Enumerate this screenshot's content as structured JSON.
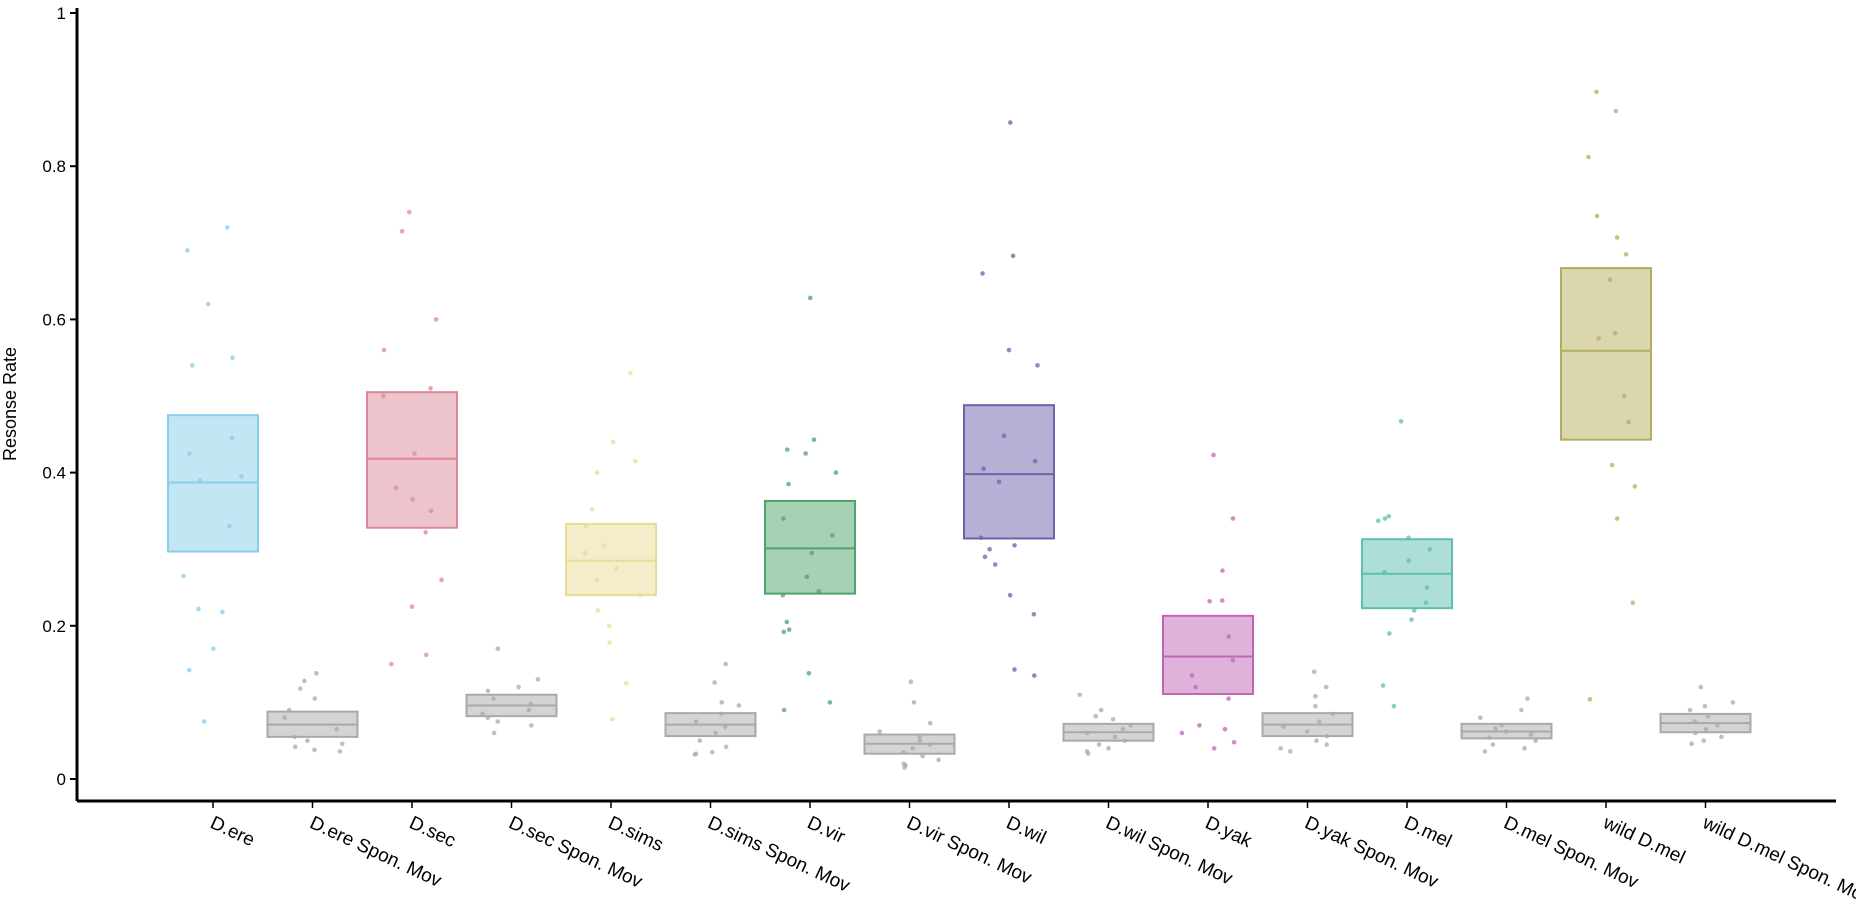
{
  "chart_data": {
    "type": "box",
    "ylabel": "Resonse Rate",
    "xlabel": "",
    "title": "",
    "ylim": [
      0,
      1
    ],
    "y_ticks": [
      0,
      0.2,
      0.4,
      0.6,
      0.8,
      1
    ],
    "y_tick_labels": [
      "0",
      "0.2",
      "0.4",
      "0.6",
      "0.8",
      "1"
    ],
    "grid": false,
    "categories": [
      "D.ere",
      "D.ere Spon. Mov",
      "D.sec",
      "D.sec Spon. Mov",
      "D.sims",
      "D.sims Spon. Mov",
      "D.vir",
      "D.vir Spon. Mov",
      "D.wil",
      "D.wil Spon. Mov",
      "D.yak",
      "D.yak Spon. Mov",
      "D.mel",
      "D.mel Spon. Mov",
      "wild D.mel",
      "wild D.mel Spon. Mov"
    ],
    "boxes": [
      {
        "category": "D.ere",
        "q1": 0.297,
        "median": 0.387,
        "q3": 0.475,
        "color": "#87ceeb",
        "points": [
          0.72,
          0.69,
          0.62,
          0.55,
          0.54,
          0.445,
          0.425,
          0.395,
          0.39,
          0.33,
          0.265,
          0.222,
          0.218,
          0.17,
          0.142,
          0.075
        ]
      },
      {
        "category": "D.ere Spon. Mov",
        "q1": 0.055,
        "median": 0.071,
        "q3": 0.088,
        "color": "#a9a9a9",
        "points": [
          0.138,
          0.128,
          0.118,
          0.105,
          0.09,
          0.08,
          0.065,
          0.055,
          0.05,
          0.046,
          0.042,
          0.038,
          0.036
        ]
      },
      {
        "category": "D.sec",
        "q1": 0.328,
        "median": 0.418,
        "q3": 0.505,
        "color": "#dc8899",
        "points": [
          0.74,
          0.715,
          0.6,
          0.56,
          0.51,
          0.5,
          0.425,
          0.38,
          0.365,
          0.35,
          0.322,
          0.26,
          0.225,
          0.162,
          0.15
        ]
      },
      {
        "category": "D.sec Spon. Mov",
        "q1": 0.082,
        "median": 0.096,
        "q3": 0.11,
        "color": "#a9a9a9",
        "points": [
          0.17,
          0.13,
          0.12,
          0.115,
          0.105,
          0.098,
          0.09,
          0.085,
          0.08,
          0.075,
          0.07,
          0.06
        ]
      },
      {
        "category": "D.sims",
        "q1": 0.24,
        "median": 0.285,
        "q3": 0.333,
        "color": "#e8dc96",
        "points": [
          0.53,
          0.44,
          0.415,
          0.4,
          0.352,
          0.33,
          0.305,
          0.295,
          0.275,
          0.26,
          0.24,
          0.22,
          0.2,
          0.178,
          0.125,
          0.078
        ]
      },
      {
        "category": "D.sims Spon. Mov",
        "q1": 0.056,
        "median": 0.071,
        "q3": 0.086,
        "color": "#a9a9a9",
        "points": [
          0.15,
          0.126,
          0.1,
          0.096,
          0.085,
          0.075,
          0.068,
          0.06,
          0.05,
          0.042,
          0.035,
          0.033,
          0.032
        ]
      },
      {
        "category": "D.vir",
        "q1": 0.242,
        "median": 0.301,
        "q3": 0.363,
        "color": "#4ea36a",
        "points": [
          0.628,
          0.443,
          0.43,
          0.425,
          0.4,
          0.385,
          0.34,
          0.318,
          0.295,
          0.264,
          0.245,
          0.24,
          0.205,
          0.195,
          0.192,
          0.138,
          0.1,
          0.09
        ]
      },
      {
        "category": "D.vir Spon. Mov",
        "q1": 0.033,
        "median": 0.046,
        "q3": 0.058,
        "color": "#a9a9a9",
        "points": [
          0.127,
          0.1,
          0.073,
          0.062,
          0.055,
          0.05,
          0.045,
          0.04,
          0.035,
          0.03,
          0.025,
          0.02,
          0.018,
          0.015
        ]
      },
      {
        "category": "D.wil",
        "q1": 0.314,
        "median": 0.398,
        "q3": 0.488,
        "color": "#6f61ab",
        "points": [
          0.857,
          0.683,
          0.66,
          0.56,
          0.54,
          0.448,
          0.415,
          0.405,
          0.388,
          0.315,
          0.305,
          0.3,
          0.29,
          0.28,
          0.24,
          0.215,
          0.143,
          0.135
        ]
      },
      {
        "category": "D.wil Spon. Mov",
        "q1": 0.05,
        "median": 0.061,
        "q3": 0.072,
        "color": "#a9a9a9",
        "points": [
          0.11,
          0.09,
          0.082,
          0.078,
          0.07,
          0.065,
          0.06,
          0.055,
          0.05,
          0.045,
          0.04,
          0.036,
          0.033
        ]
      },
      {
        "category": "D.yak",
        "q1": 0.111,
        "median": 0.16,
        "q3": 0.213,
        "color": "#c066b5",
        "points": [
          0.423,
          0.34,
          0.272,
          0.233,
          0.232,
          0.186,
          0.155,
          0.135,
          0.12,
          0.105,
          0.07,
          0.065,
          0.06,
          0.048,
          0.04
        ]
      },
      {
        "category": "D.yak Spon. Mov",
        "q1": 0.056,
        "median": 0.071,
        "q3": 0.086,
        "color": "#a9a9a9",
        "points": [
          0.14,
          0.12,
          0.108,
          0.095,
          0.085,
          0.075,
          0.068,
          0.062,
          0.056,
          0.05,
          0.045,
          0.04,
          0.036
        ]
      },
      {
        "category": "D.mel",
        "q1": 0.223,
        "median": 0.268,
        "q3": 0.313,
        "color": "#5dbfae",
        "points": [
          0.467,
          0.343,
          0.34,
          0.337,
          0.315,
          0.3,
          0.285,
          0.27,
          0.25,
          0.23,
          0.22,
          0.208,
          0.19,
          0.122,
          0.095
        ]
      },
      {
        "category": "D.mel Spon. Mov",
        "q1": 0.053,
        "median": 0.062,
        "q3": 0.072,
        "color": "#a9a9a9",
        "points": [
          0.105,
          0.09,
          0.08,
          0.07,
          0.066,
          0.062,
          0.058,
          0.054,
          0.05,
          0.045,
          0.04,
          0.036
        ]
      },
      {
        "category": "wild D.mel",
        "q1": 0.443,
        "median": 0.559,
        "q3": 0.667,
        "color": "#b5ad5d",
        "points": [
          0.897,
          0.872,
          0.812,
          0.735,
          0.707,
          0.685,
          0.652,
          0.582,
          0.575,
          0.5,
          0.466,
          0.41,
          0.382,
          0.34,
          0.23,
          0.104
        ]
      },
      {
        "category": "wild D.mel Spon. Mov",
        "q1": 0.061,
        "median": 0.073,
        "q3": 0.085,
        "color": "#a9a9a9",
        "points": [
          0.12,
          0.1,
          0.095,
          0.09,
          0.082,
          0.075,
          0.07,
          0.065,
          0.06,
          0.055,
          0.05,
          0.046
        ]
      }
    ]
  }
}
